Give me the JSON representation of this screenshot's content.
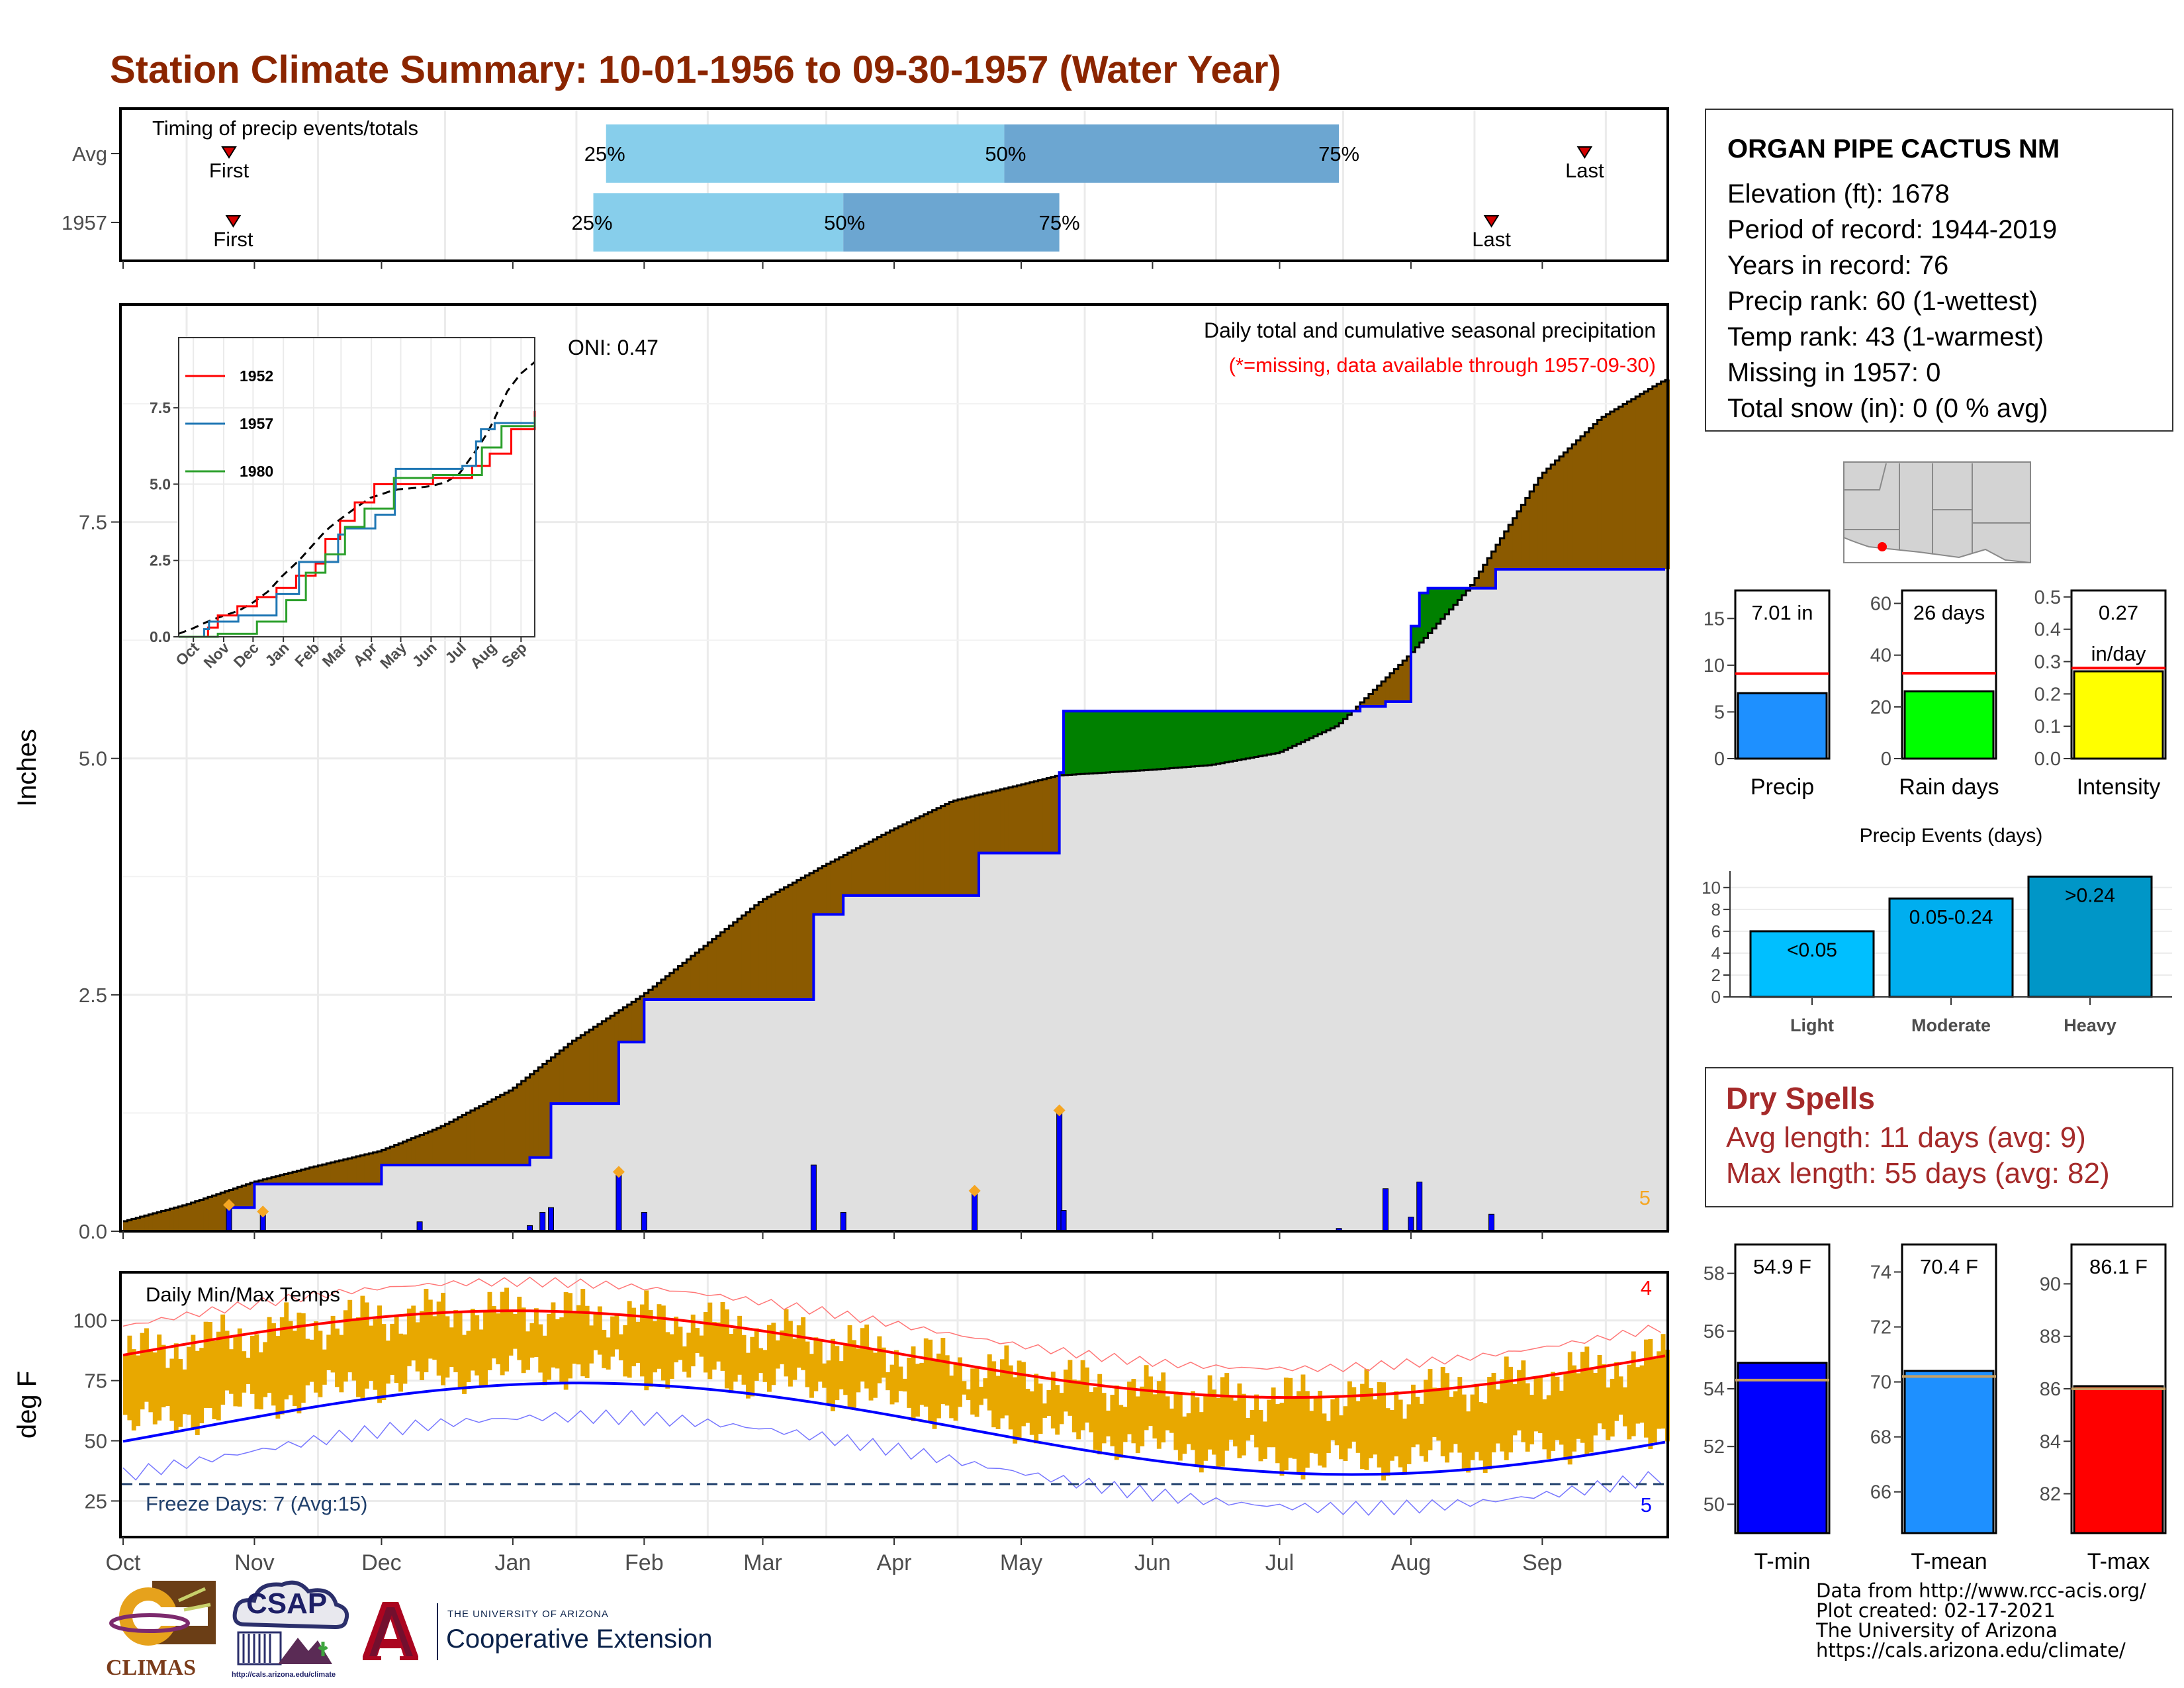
{
  "page": {
    "title": "Station Climate Summary: 10-01-1956 to 09-30-1957 (Water Year)",
    "months": [
      "Oct",
      "Nov",
      "Dec",
      "Jan",
      "Feb",
      "Mar",
      "Apr",
      "May",
      "Jun",
      "Jul",
      "Aug",
      "Sep"
    ]
  },
  "station": {
    "name": "ORGAN PIPE CACTUS NM",
    "elevation": "Elevation (ft): 1678",
    "period": "Period of record: 1944-2019",
    "years": "Years in record: 76",
    "precip_rank": "Precip rank: 60 (1-wettest)",
    "temp_rank": "Temp rank: 43 (1-warmest)",
    "missing": "Missing in 1957: 0",
    "snow": "Total snow (in): 0 (0 % avg)"
  },
  "dry_spells": {
    "title": "Dry Spells",
    "avg": "Avg length: 11 days (avg: 9)",
    "max": "Max length: 55 days (avg: 82)"
  },
  "credits": {
    "line1": "Data from http://www.rcc-acis.org/",
    "line2": "Plot created: 02-17-2021",
    "line3": "The University of Arizona",
    "line4": "https://cals.arizona.edu/climate/"
  },
  "logos": {
    "climas": "CLIMAS",
    "csap": "CSAP",
    "csap_url": "http://cals.arizona.edu/climate",
    "ua_small": "THE UNIVERSITY OF ARIZONA",
    "ua_big": "Cooperative Extension"
  },
  "colors": {
    "title": "#8b2500",
    "brown": "#8b5a00",
    "green": "#008000",
    "gray_fill": "#e0e0e0",
    "blue": "#0000ff",
    "light_blue": "#87ceeb",
    "mid_blue": "#6ca6d1",
    "red": "#ff0000",
    "orange_bar": "#e8a800",
    "dry_red": "#a52a2a"
  },
  "chart_data": [
    {
      "id": "timing",
      "type": "bar",
      "title": "Timing of precip events/totals",
      "rows": [
        {
          "name": "Avg",
          "first": "Oct 26",
          "p25": "Jan 23",
          "p50": "Apr 27",
          "p75": "Jul 15",
          "last": "Sep 11"
        },
        {
          "name": "1957",
          "first": "Oct 27",
          "p25": "Jan 20",
          "p50": "Mar 20",
          "p75": "May 10",
          "last": "Aug 20"
        }
      ],
      "labels": {
        "first": "First",
        "last": "Last",
        "p25": "25%",
        "p50": "50%",
        "p75": "75%"
      }
    },
    {
      "id": "precip",
      "type": "area",
      "title": "Daily total and cumulative seasonal precipitation",
      "subtitle": "(*=missing, data available through 1957-09-30)",
      "ylabel": "Inches",
      "ylim": [
        0,
        9.8
      ],
      "yticks": [
        "0.0",
        "2.5",
        "5.0",
        "7.5"
      ],
      "oni": "ONI: 0.47",
      "count_label": "5",
      "avg_cumulative": [
        [
          "10-01",
          0.1
        ],
        [
          "10-16",
          0.28
        ],
        [
          "11-01",
          0.52
        ],
        [
          "11-15",
          0.68
        ],
        [
          "12-01",
          0.85
        ],
        [
          "12-15",
          1.1
        ],
        [
          "01-01",
          1.5
        ],
        [
          "01-15",
          2.0
        ],
        [
          "02-01",
          2.5
        ],
        [
          "02-15",
          3.0
        ],
        [
          "03-01",
          3.5
        ],
        [
          "03-15",
          3.85
        ],
        [
          "04-01",
          4.25
        ],
        [
          "04-15",
          4.55
        ],
        [
          "05-01",
          4.72
        ],
        [
          "05-10",
          4.82
        ],
        [
          "06-01",
          4.88
        ],
        [
          "06-15",
          4.93
        ],
        [
          "07-01",
          5.06
        ],
        [
          "07-15",
          5.35
        ],
        [
          "08-01",
          6.1
        ],
        [
          "08-15",
          6.8
        ],
        [
          "09-01",
          8.0
        ],
        [
          "09-15",
          8.6
        ],
        [
          "09-30",
          9.0
        ]
      ],
      "obs_cumulative": [
        [
          "10-01",
          0.0
        ],
        [
          "10-26",
          0.25
        ],
        [
          "11-01",
          0.5
        ],
        [
          "11-15",
          0.5
        ],
        [
          "12-01",
          0.7
        ],
        [
          "01-01",
          0.7
        ],
        [
          "01-05",
          0.78
        ],
        [
          "01-10",
          1.35
        ],
        [
          "01-26",
          2.0
        ],
        [
          "02-01",
          2.45
        ],
        [
          "03-13",
          2.45
        ],
        [
          "03-13",
          3.35
        ],
        [
          "03-20",
          3.55
        ],
        [
          "04-20",
          3.55
        ],
        [
          "04-21",
          4.0
        ],
        [
          "05-10",
          4.0
        ],
        [
          "05-10",
          4.85
        ],
        [
          "05-11",
          5.5
        ],
        [
          "07-20",
          5.55
        ],
        [
          "07-26",
          5.6
        ],
        [
          "08-01",
          6.4
        ],
        [
          "08-03",
          6.75
        ],
        [
          "08-05",
          6.8
        ],
        [
          "08-20",
          6.8
        ],
        [
          "08-21",
          7.0
        ],
        [
          "09-30",
          7.0
        ]
      ],
      "daily_bars": [
        [
          "10-26",
          0.25
        ],
        [
          "11-03",
          0.18
        ],
        [
          "12-10",
          0.1
        ],
        [
          "01-05",
          0.06
        ],
        [
          "01-08",
          0.2
        ],
        [
          "01-10",
          0.25
        ],
        [
          "01-26",
          0.6
        ],
        [
          "02-01",
          0.2
        ],
        [
          "03-13",
          0.7
        ],
        [
          "03-20",
          0.2
        ],
        [
          "04-20",
          0.4
        ],
        [
          "05-10",
          1.25
        ],
        [
          "05-11",
          0.22
        ],
        [
          "07-15",
          0.03
        ],
        [
          "07-26",
          0.45
        ],
        [
          "08-01",
          0.15
        ],
        [
          "08-03",
          0.52
        ],
        [
          "08-20",
          0.18
        ]
      ],
      "extreme_markers": [
        "10-26",
        "11-03",
        "01-26",
        "04-20",
        "05-10"
      ]
    },
    {
      "id": "inset",
      "type": "line",
      "ylim": [
        0,
        9.8
      ],
      "yticks": [
        "0.0",
        "2.5",
        "5.0",
        "7.5"
      ],
      "xticks": [
        "Oct",
        "Nov",
        "Dec",
        "Jan",
        "Feb",
        "Mar",
        "Apr",
        "May",
        "Jun",
        "Jul",
        "Aug",
        "Sep"
      ],
      "series": [
        {
          "name": "1952",
          "color": "#ff0000"
        },
        {
          "name": "1957",
          "color": "#1f77b4"
        },
        {
          "name": "1980",
          "color": "#2ca02c"
        }
      ]
    },
    {
      "id": "bars_precip",
      "type": "bar",
      "panels": [
        {
          "label": "Precip",
          "value": 7.01,
          "avg": 9.1,
          "ylim": [
            0,
            18
          ],
          "yticks": [
            0,
            5,
            10,
            15
          ],
          "color": "#1e90ff",
          "text_lines": [
            "7.01 in"
          ]
        },
        {
          "label": "Rain days",
          "value": 26,
          "avg": 33,
          "ylim": [
            0,
            65
          ],
          "yticks": [
            0,
            20,
            40,
            60
          ],
          "color": "#00ff00",
          "text_lines": [
            "26 days"
          ]
        },
        {
          "label": "Intensity",
          "value": 0.27,
          "avg": 0.28,
          "ylim": [
            0,
            0.52
          ],
          "yticks": [
            "0.0",
            "0.1",
            "0.2",
            "0.3",
            "0.4",
            "0.5"
          ],
          "color": "#ffff00",
          "text_lines": [
            "0.27",
            "in/day"
          ]
        }
      ]
    },
    {
      "id": "events",
      "type": "bar",
      "title": "Precip Events (days)",
      "categories": [
        "Light",
        "Moderate",
        "Heavy"
      ],
      "values": [
        6,
        9,
        11
      ],
      "bar_labels": [
        "<0.05",
        "0.05-0.24",
        ">0.24"
      ],
      "ylim": [
        0,
        11.5
      ],
      "yticks": [
        0,
        2,
        4,
        6,
        8,
        10
      ],
      "colors": [
        "#00bfff",
        "#00aeef",
        "#0096c7"
      ]
    },
    {
      "id": "temps",
      "type": "bar",
      "title": "Daily Min/Max Temps",
      "ylabel": "deg F",
      "ylim": [
        10,
        120
      ],
      "yticks": [
        25,
        50,
        75,
        100
      ],
      "freeze_line": 32,
      "freeze_text": "Freeze Days: 7 (Avg:15)",
      "hi_count": "4",
      "lo_count": "5"
    },
    {
      "id": "temp_bars",
      "type": "bar",
      "panels": [
        {
          "label": "T-min",
          "value": 54.9,
          "avg": 54.3,
          "ylim": [
            49,
            59
          ],
          "yticks": [
            50,
            52,
            54,
            56,
            58
          ],
          "color": "#0000ff",
          "text": "54.9 F"
        },
        {
          "label": "T-mean",
          "value": 70.4,
          "avg": 70.2,
          "ylim": [
            64.5,
            75
          ],
          "yticks": [
            66,
            68,
            70,
            72,
            74
          ],
          "color": "#1e90ff",
          "text": "70.4 F"
        },
        {
          "label": "T-max",
          "value": 86.1,
          "avg": 86.0,
          "ylim": [
            80.5,
            91.5
          ],
          "yticks": [
            82,
            84,
            86,
            88,
            90
          ],
          "color": "#ff0000",
          "text": "86.1 F"
        }
      ]
    }
  ]
}
